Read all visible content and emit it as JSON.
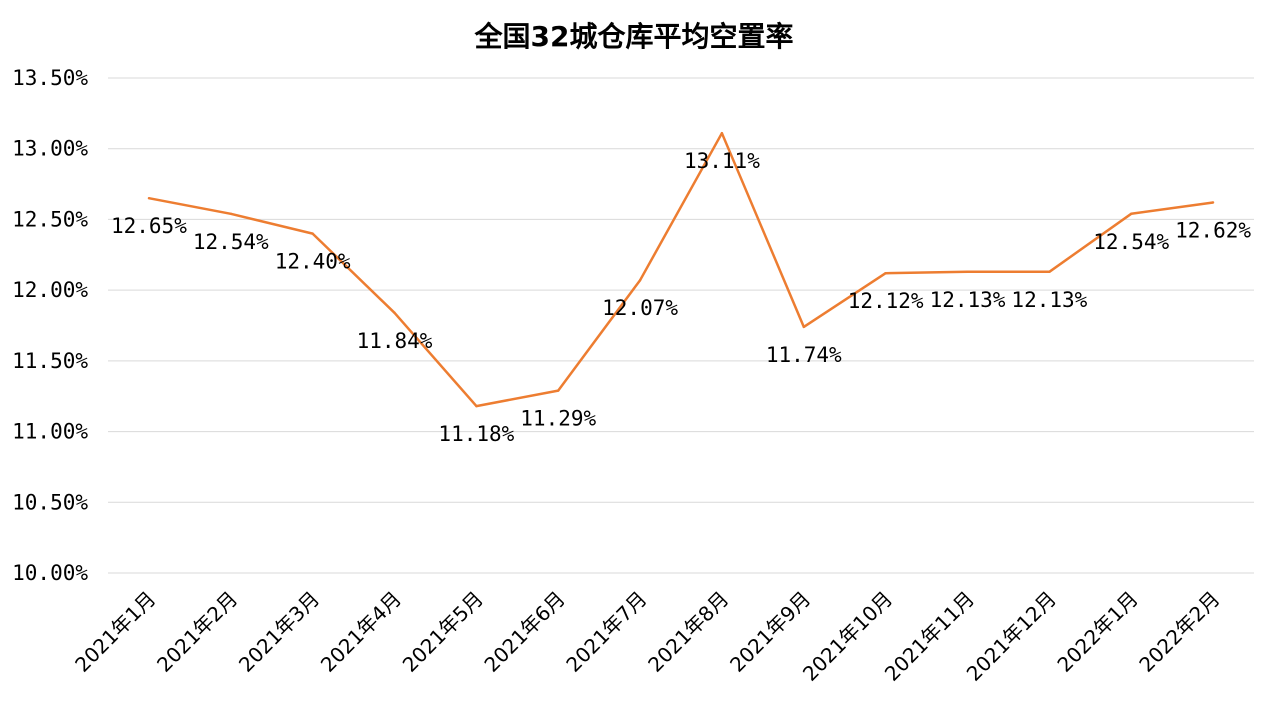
{
  "chart_data": {
    "type": "line",
    "title": "全国32城仓库平均空置率",
    "xlabel": "",
    "ylabel": "",
    "categories": [
      "2021年1月",
      "2021年2月",
      "2021年3月",
      "2021年4月",
      "2021年5月",
      "2021年6月",
      "2021年7月",
      "2021年8月",
      "2021年9月",
      "2021年10月",
      "2021年11月",
      "2021年12月",
      "2022年1月",
      "2022年2月"
    ],
    "series": [
      {
        "values": [
          12.65,
          12.54,
          12.4,
          11.84,
          11.18,
          11.29,
          12.07,
          13.11,
          11.74,
          12.12,
          12.13,
          12.13,
          12.54,
          12.62
        ],
        "labels": [
          "12.65%",
          "12.54%",
          "12.40%",
          "11.84%",
          "11.18%",
          "11.29%",
          "12.07%",
          "13.11%",
          "11.74%",
          "12.12%",
          "12.13%",
          "12.13%",
          "12.54%",
          "12.62%"
        ],
        "color": "#ED7D31"
      }
    ],
    "ylim": [
      10.0,
      13.5
    ],
    "yticks": [
      10.0,
      10.5,
      11.0,
      11.5,
      12.0,
      12.5,
      13.0,
      13.5
    ],
    "ytick_labels": [
      "10.00%",
      "10.50%",
      "11.00%",
      "11.50%",
      "12.00%",
      "12.50%",
      "13.00%",
      "13.50%"
    ],
    "grid": true,
    "legend": "none"
  }
}
